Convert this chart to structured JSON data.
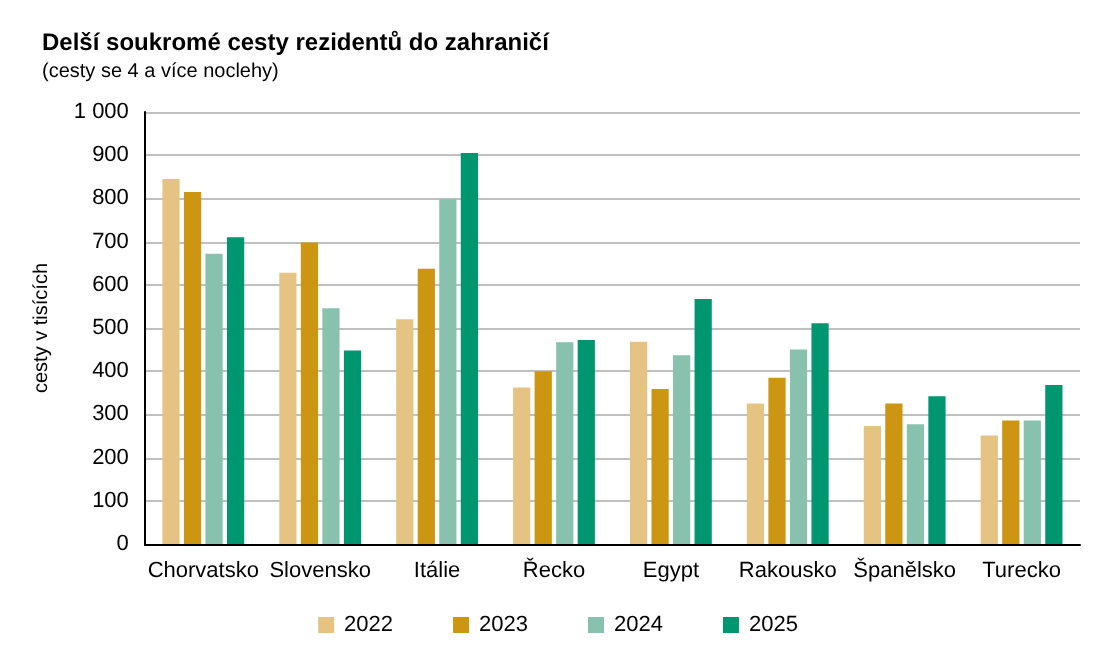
{
  "chart_data": {
    "type": "bar",
    "title": "Delší soukromé cesty rezidentů do zahraničí",
    "subtitle": "(cesty se 4 a více noclehy)",
    "ylabel": "cesty v tisících",
    "categories": [
      "Chorvatsko",
      "Slovensko",
      "Itálie",
      "Řecko",
      "Egypt",
      "Rakousko",
      "Španělsko",
      "Turecko"
    ],
    "series": [
      {
        "name": "2022",
        "color": "#e5c483",
        "values": [
          845,
          628,
          520,
          362,
          468,
          325,
          273,
          251
        ]
      },
      {
        "name": "2023",
        "color": "#cc9512",
        "values": [
          815,
          698,
          637,
          400,
          359,
          385,
          325,
          286
        ]
      },
      {
        "name": "2024",
        "color": "#88c2ae",
        "values": [
          672,
          546,
          798,
          467,
          437,
          450,
          277,
          286
        ]
      },
      {
        "name": "2025",
        "color": "#009670",
        "values": [
          710,
          448,
          905,
          472,
          567,
          511,
          342,
          368
        ]
      }
    ],
    "ylim": [
      0,
      1000
    ],
    "yticks": [
      0,
      100,
      200,
      300,
      400,
      500,
      600,
      700,
      800,
      900,
      {
        "value": 1000,
        "label": "1 000"
      }
    ],
    "grid": "y",
    "legend": "bottom"
  }
}
